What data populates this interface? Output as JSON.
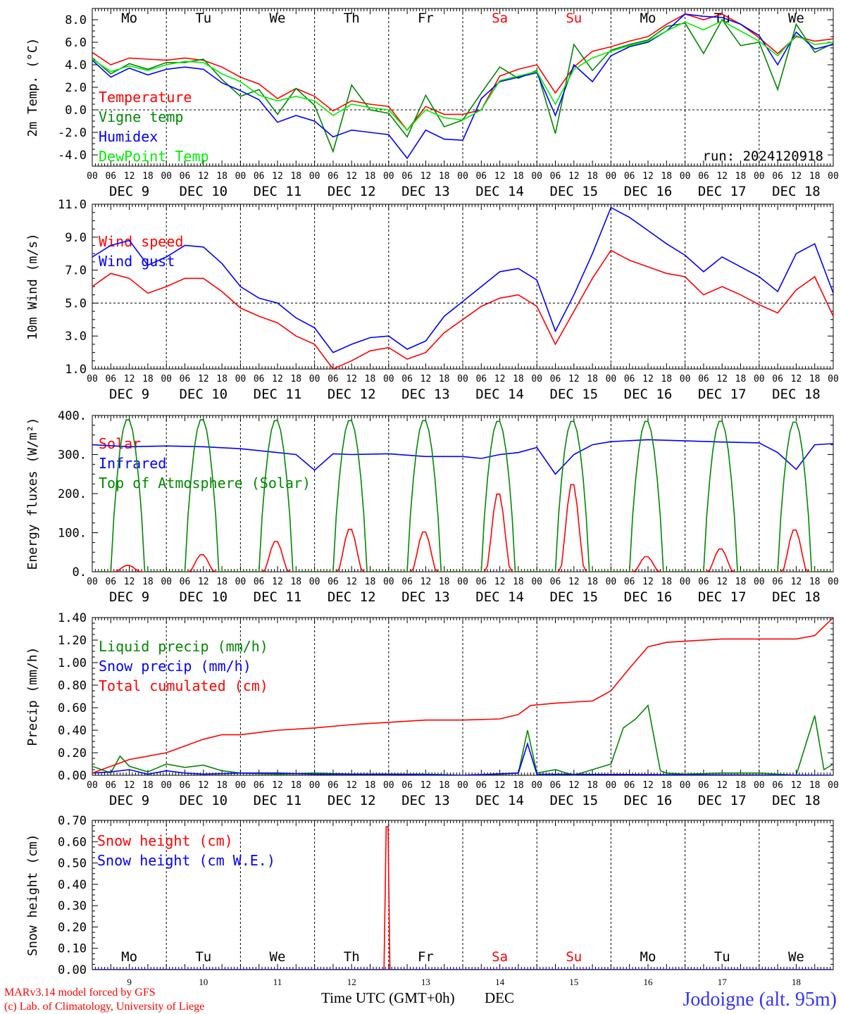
{
  "x_axis": {
    "hour_ticks": [
      "00",
      "06",
      "12",
      "18"
    ],
    "hour_last": "00",
    "dates": [
      "DEC  9",
      "DEC 10",
      "DEC 11",
      "DEC 12",
      "DEC 13",
      "DEC 14",
      "DEC 15",
      "DEC 16",
      "DEC 17",
      "DEC 18"
    ],
    "day_abbrev": [
      "Mo",
      "Tu",
      "We",
      "Th",
      "Fr",
      "Sa",
      "Su",
      "Mo",
      "Tu",
      "We"
    ],
    "day_colors": [
      "#000000",
      "#000000",
      "#000000",
      "#000000",
      "#000000",
      "#ff0000",
      "#ff0000",
      "#000000",
      "#000000",
      "#000000"
    ],
    "day_numbers": [
      "9",
      "10",
      "11",
      "12",
      "13",
      "14",
      "15",
      "16",
      "17",
      "18"
    ],
    "xlabel": "Time UTC (GMT+0h)",
    "xlabel_month": "DEC"
  },
  "footer": {
    "credit_line1": "MARv3.14 model forced by GFS",
    "credit_line2": "(c) Lab. of Climatology, University of Liege",
    "station": "Jodoigne (alt. 95m)"
  },
  "chart_data": [
    {
      "type": "line",
      "id": "temperature",
      "ylabel": "2m Temp. (°C)",
      "ylim": [
        -5,
        9
      ],
      "yticks": [
        -4,
        -2,
        0,
        2,
        4,
        6,
        8
      ],
      "ytick_labels": [
        "-4.0",
        "-2.0",
        "0.0",
        "2.0",
        "4.0",
        "6.0",
        "8.0"
      ],
      "ref_line": 0,
      "run_label": "run: 2024120918",
      "x_hours": [
        0,
        6,
        12,
        18,
        24,
        30,
        36,
        42,
        48,
        54,
        60,
        66,
        72,
        78,
        84,
        90,
        96,
        102,
        108,
        114,
        120,
        126,
        132,
        138,
        144,
        150,
        156,
        162,
        168,
        174,
        180,
        186,
        192,
        198,
        204,
        210,
        216,
        222,
        228,
        234,
        240
      ],
      "series": [
        {
          "name": "Temperature",
          "color": "#ff0000",
          "values": [
            5.1,
            4.0,
            4.6,
            4.5,
            4.4,
            4.6,
            4.4,
            3.8,
            2.9,
            2.3,
            1.0,
            1.9,
            1.2,
            -0.1,
            0.8,
            0.5,
            0.3,
            -1.8,
            0.3,
            -0.4,
            -0.4,
            0.0,
            3.0,
            3.6,
            4.0,
            1.5,
            3.8,
            5.2,
            5.6,
            6.1,
            6.5,
            7.6,
            8.5,
            8.0,
            8.5,
            7.6,
            6.4,
            5.0,
            6.5,
            6.1,
            6.3
          ]
        },
        {
          "name": "Vigne temp",
          "color": "#008800",
          "values": [
            4.6,
            3.2,
            4.1,
            3.6,
            4.2,
            4.2,
            4.5,
            2.7,
            1.2,
            1.8,
            -0.4,
            1.9,
            0.4,
            -3.7,
            2.2,
            0.0,
            -0.3,
            -2.4,
            1.3,
            -1.5,
            -0.9,
            1.5,
            3.8,
            2.8,
            3.5,
            -2.1,
            5.8,
            3.5,
            5.3,
            5.8,
            6.2,
            7.4,
            7.7,
            5.0,
            8.0,
            5.7,
            6.0,
            1.8,
            7.6,
            5.1,
            5.9
          ]
        },
        {
          "name": "Humidex",
          "color": "#0000ff",
          "values": [
            4.4,
            2.9,
            3.7,
            3.1,
            3.6,
            3.8,
            3.6,
            2.4,
            1.7,
            0.9,
            -1.1,
            -0.5,
            -1.0,
            -2.4,
            -1.8,
            -2.0,
            -2.2,
            -4.3,
            -1.8,
            -2.6,
            -2.7,
            1.0,
            2.5,
            2.9,
            3.3,
            -0.5,
            4.0,
            2.5,
            4.8,
            5.6,
            6.0,
            7.0,
            8.5,
            8.3,
            8.2,
            7.6,
            6.6,
            4.0,
            6.9,
            5.4,
            5.8
          ]
        },
        {
          "name": "DewPoint Temp",
          "color": "#00ee00",
          "values": [
            4.5,
            3.4,
            3.9,
            3.5,
            4.0,
            4.3,
            4.2,
            3.2,
            2.5,
            1.3,
            0.8,
            1.2,
            0.8,
            -0.5,
            0.5,
            0.2,
            0.0,
            -1.8,
            0.0,
            -0.7,
            -0.9,
            0.0,
            2.6,
            3.0,
            3.4,
            0.5,
            3.6,
            4.6,
            5.2,
            5.7,
            6.1,
            7.0,
            7.8,
            7.1,
            7.9,
            7.0,
            6.1,
            4.8,
            6.6,
            5.8,
            6.0
          ]
        }
      ]
    },
    {
      "type": "line",
      "id": "wind",
      "ylabel": "10m Wind (m/s)",
      "ylim": [
        1,
        11
      ],
      "yticks": [
        1,
        3,
        5,
        7,
        9,
        11
      ],
      "ytick_labels": [
        "1.0",
        "3.0",
        "5.0",
        "7.0",
        "9.0",
        "11.0"
      ],
      "ref_line": 5,
      "x_hours": [
        0,
        6,
        12,
        18,
        24,
        30,
        36,
        42,
        48,
        54,
        60,
        66,
        72,
        78,
        84,
        90,
        96,
        102,
        108,
        114,
        120,
        126,
        132,
        138,
        144,
        150,
        156,
        162,
        168,
        174,
        180,
        186,
        192,
        198,
        204,
        210,
        216,
        222,
        228,
        234,
        240
      ],
      "series": [
        {
          "name": "Wind speed",
          "color": "#ff0000",
          "values": [
            6.0,
            6.8,
            6.5,
            5.6,
            6.0,
            6.5,
            6.5,
            5.7,
            4.7,
            4.2,
            3.8,
            3.0,
            2.5,
            1.0,
            1.5,
            2.1,
            2.3,
            1.6,
            2.0,
            3.2,
            4.0,
            4.8,
            5.3,
            5.5,
            4.8,
            2.5,
            4.5,
            6.5,
            8.2,
            7.6,
            7.2,
            6.8,
            6.6,
            5.5,
            6.0,
            5.5,
            4.9,
            4.4,
            5.8,
            6.6,
            4.2
          ]
        },
        {
          "name": "Wind gust",
          "color": "#0000ff",
          "values": [
            7.8,
            8.5,
            8.8,
            7.3,
            7.8,
            8.5,
            8.4,
            7.4,
            6.0,
            5.3,
            5.0,
            4.1,
            3.5,
            2.0,
            2.5,
            2.9,
            3.0,
            2.2,
            2.7,
            4.2,
            5.1,
            6.0,
            6.9,
            7.1,
            6.4,
            3.3,
            5.5,
            8.0,
            10.8,
            10.2,
            9.4,
            8.6,
            7.9,
            6.9,
            7.8,
            7.2,
            6.6,
            5.7,
            8.0,
            8.6,
            5.6
          ]
        }
      ]
    },
    {
      "type": "line",
      "id": "energy",
      "ylabel": "Energy fluxes (W/m²)",
      "ylim": [
        0,
        400
      ],
      "yticks": [
        0,
        100,
        200,
        300,
        400
      ],
      "ytick_labels": [
        "0.",
        "100.",
        "200.",
        "300.",
        "400."
      ],
      "series": [
        {
          "name": "Solar",
          "color": "#ff0000",
          "day_peaks": [
            17,
            45,
            80,
            112,
            105,
            205,
            230,
            40,
            60,
            110
          ]
        },
        {
          "name": "Infrared",
          "color": "#0000ff",
          "x_hours": [
            0,
            12,
            24,
            36,
            48,
            60,
            66,
            72,
            78,
            84,
            96,
            108,
            120,
            126,
            132,
            138,
            144,
            150,
            156,
            162,
            168,
            180,
            192,
            204,
            216,
            222,
            228,
            234,
            240
          ],
          "values": [
            325,
            320,
            322,
            320,
            315,
            305,
            300,
            260,
            302,
            300,
            302,
            295,
            295,
            290,
            300,
            305,
            318,
            250,
            300,
            325,
            333,
            338,
            335,
            332,
            330,
            305,
            262,
            325,
            328
          ]
        },
        {
          "name": "Top of Atmosphere (Solar)",
          "color": "#008800",
          "day_peaks": [
            392,
            392,
            390,
            390,
            390,
            388,
            388,
            388,
            388,
            386
          ]
        }
      ]
    },
    {
      "type": "line",
      "id": "precip",
      "ylabel": "Precip (mm/h)",
      "ylim": [
        0,
        1.4
      ],
      "yticks": [
        0,
        0.2,
        0.4,
        0.6,
        0.8,
        1.0,
        1.2,
        1.4
      ],
      "ytick_labels": [
        "0.00",
        "0.20",
        "0.40",
        "0.60",
        "0.80",
        "1.00",
        "1.20",
        "1.40"
      ],
      "series": [
        {
          "name": "Liquid precip (mm/h)",
          "color": "#008800",
          "x_hours": [
            0,
            6,
            9,
            12,
            18,
            24,
            30,
            36,
            42,
            48,
            60,
            72,
            84,
            96,
            108,
            120,
            132,
            138,
            141,
            144,
            150,
            156,
            168,
            172,
            176,
            180,
            184,
            186,
            192,
            204,
            216,
            228,
            234,
            237,
            240
          ],
          "values": [
            0.08,
            0.02,
            0.17,
            0.08,
            0.03,
            0.1,
            0.07,
            0.09,
            0.04,
            0.02,
            0.01,
            0.02,
            0.01,
            0.01,
            0.01,
            0.0,
            0.01,
            0.02,
            0.4,
            0.02,
            0.05,
            0.0,
            0.1,
            0.42,
            0.5,
            0.62,
            0.04,
            0.02,
            0.01,
            0.02,
            0.02,
            0.0,
            0.53,
            0.05,
            0.1
          ]
        },
        {
          "name": "Snow precip (mm/h)",
          "color": "#0000ff",
          "x_hours": [
            0,
            6,
            12,
            18,
            24,
            30,
            36,
            48,
            60,
            72,
            96,
            120,
            138,
            141,
            144,
            240
          ],
          "values": [
            0.02,
            0.03,
            0.05,
            0.01,
            0.04,
            0.02,
            0.01,
            0.02,
            0.02,
            0.01,
            0.01,
            0.0,
            0.02,
            0.28,
            0.01,
            0.0
          ]
        },
        {
          "name": "Total cumulated (cm)",
          "color": "#ff0000",
          "x_hours": [
            0,
            6,
            12,
            18,
            24,
            30,
            36,
            42,
            48,
            60,
            72,
            84,
            96,
            108,
            120,
            132,
            138,
            142,
            150,
            156,
            162,
            168,
            174,
            180,
            186,
            192,
            204,
            216,
            228,
            234,
            240
          ],
          "values": [
            0.02,
            0.08,
            0.14,
            0.17,
            0.2,
            0.26,
            0.32,
            0.36,
            0.36,
            0.4,
            0.42,
            0.45,
            0.47,
            0.49,
            0.49,
            0.5,
            0.54,
            0.62,
            0.64,
            0.65,
            0.66,
            0.75,
            0.95,
            1.14,
            1.18,
            1.19,
            1.21,
            1.21,
            1.21,
            1.24,
            1.4
          ]
        }
      ]
    },
    {
      "type": "line",
      "id": "snow",
      "ylabel": "Snow height (cm)",
      "ylim": [
        0,
        0.7
      ],
      "yticks": [
        0,
        0.1,
        0.2,
        0.3,
        0.4,
        0.5,
        0.6,
        0.7
      ],
      "ytick_labels": [
        "0.00",
        "0.10",
        "0.20",
        "0.30",
        "0.40",
        "0.50",
        "0.60",
        "0.70"
      ],
      "series": [
        {
          "name": "Snow height (cm)",
          "color": "#ff0000",
          "x_hours": [
            0,
            94.5,
            95.2,
            95.8,
            96.4,
            240
          ],
          "values": [
            0,
            0,
            0.67,
            0.67,
            0,
            0
          ]
        },
        {
          "name": "Snow height (cm W.E.)",
          "color": "#0000ff",
          "x_hours": [
            0,
            240
          ],
          "values": [
            0,
            0
          ]
        }
      ]
    }
  ]
}
